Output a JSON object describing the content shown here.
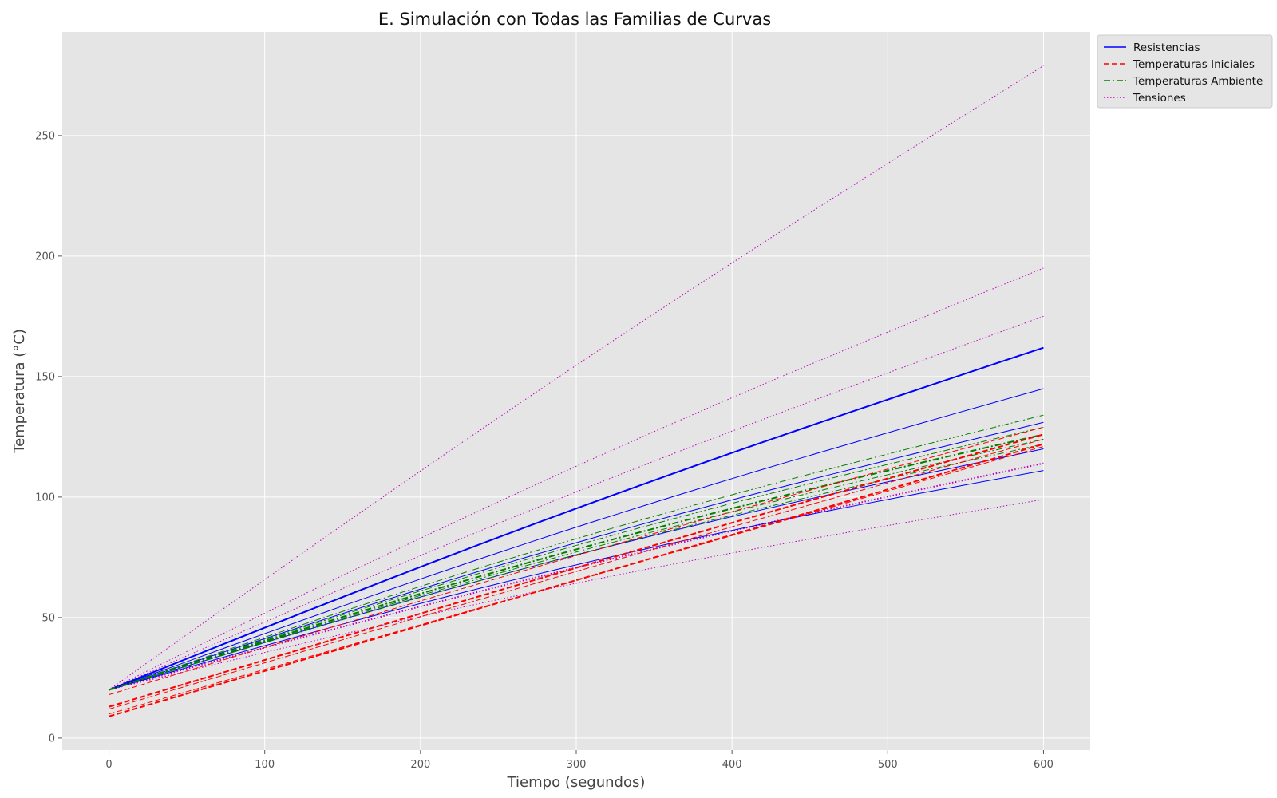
{
  "chart_data": {
    "type": "line",
    "title": "E. Simulación con Todas las Familias de Curvas",
    "xlabel": "Tiempo (segundos)",
    "ylabel": "Temperatura (°C)",
    "xlim": [
      -30,
      630
    ],
    "ylim": [
      -5,
      293
    ],
    "xticks": [
      0,
      100,
      200,
      300,
      400,
      500,
      600
    ],
    "yticks": [
      0,
      50,
      100,
      150,
      200,
      250
    ],
    "grid": true,
    "legend_position": "outside-top-right",
    "legend": [
      {
        "label": "Resistencias",
        "color": "#0000ff",
        "dash": "solid"
      },
      {
        "label": "Temperaturas Iniciales",
        "color": "#ff0000",
        "dash": "dashed"
      },
      {
        "label": "Temperaturas Ambiente",
        "color": "#008000",
        "dash": "dashdot"
      },
      {
        "label": "Tensiones",
        "color": "#bf00bf",
        "dash": "dotted"
      }
    ],
    "series": [
      {
        "family": "Tensiones",
        "color": "#bf00bf",
        "dash": "dotted",
        "width": 1,
        "x": [
          0,
          600
        ],
        "y": [
          20,
          279
        ],
        "curve": 0.02
      },
      {
        "family": "Tensiones",
        "color": "#bf00bf",
        "dash": "dotted",
        "width": 1,
        "x": [
          0,
          600
        ],
        "y": [
          20,
          195
        ],
        "curve": 0.03
      },
      {
        "family": "Tensiones",
        "color": "#bf00bf",
        "dash": "dotted",
        "width": 1,
        "x": [
          0,
          600
        ],
        "y": [
          20,
          175
        ],
        "curve": 0.03
      },
      {
        "family": "Tensiones",
        "color": "#bf00bf",
        "dash": "dotted",
        "width": 2,
        "x": [
          0,
          600
        ],
        "y": [
          20,
          114
        ],
        "curve": 0.04
      },
      {
        "family": "Tensiones",
        "color": "#bf00bf",
        "dash": "dotted",
        "width": 1,
        "x": [
          0,
          600
        ],
        "y": [
          20,
          99
        ],
        "curve": 0.06
      },
      {
        "family": "Resistencias",
        "color": "#0000ff",
        "dash": "solid",
        "width": 2,
        "x": [
          0,
          600
        ],
        "y": [
          20,
          162
        ],
        "curve": 0.03
      },
      {
        "family": "Resistencias",
        "color": "#0000ff",
        "dash": "solid",
        "width": 1,
        "x": [
          0,
          600
        ],
        "y": [
          20,
          145
        ],
        "curve": 0.04
      },
      {
        "family": "Resistencias",
        "color": "#0000ff",
        "dash": "solid",
        "width": 1,
        "x": [
          0,
          600
        ],
        "y": [
          20,
          131
        ],
        "curve": 0.05
      },
      {
        "family": "Resistencias",
        "color": "#0000ff",
        "dash": "solid",
        "width": 1,
        "x": [
          0,
          600
        ],
        "y": [
          20,
          120
        ],
        "curve": 0.06
      },
      {
        "family": "Resistencias",
        "color": "#0000ff",
        "dash": "solid",
        "width": 1,
        "x": [
          0,
          600
        ],
        "y": [
          20,
          111
        ],
        "curve": 0.07
      },
      {
        "family": "Temperaturas Ambiente",
        "color": "#008000",
        "dash": "dashdot",
        "width": 1,
        "x": [
          0,
          600
        ],
        "y": [
          20,
          134
        ],
        "curve": 0.05
      },
      {
        "family": "Temperaturas Ambiente",
        "color": "#008000",
        "dash": "dashdot",
        "width": 1,
        "x": [
          0,
          600
        ],
        "y": [
          20,
          129
        ],
        "curve": 0.05
      },
      {
        "family": "Temperaturas Ambiente",
        "color": "#008000",
        "dash": "dashdot",
        "width": 2,
        "x": [
          0,
          600
        ],
        "y": [
          20,
          126
        ],
        "curve": 0.05
      },
      {
        "family": "Temperaturas Ambiente",
        "color": "#008000",
        "dash": "dashdot",
        "width": 1,
        "x": [
          0,
          600
        ],
        "y": [
          20,
          124
        ],
        "curve": 0.05
      },
      {
        "family": "Temperaturas Ambiente",
        "color": "#008000",
        "dash": "dashdot",
        "width": 1,
        "x": [
          0,
          600
        ],
        "y": [
          20,
          122
        ],
        "curve": 0.05
      },
      {
        "family": "Temperaturas Iniciales",
        "color": "#ff0000",
        "dash": "dashed",
        "width": 1,
        "x": [
          0,
          600
        ],
        "y": [
          18,
          129
        ],
        "curve": 0.02
      },
      {
        "family": "Temperaturas Iniciales",
        "color": "#ff0000",
        "dash": "dashed",
        "width": 2,
        "x": [
          0,
          600
        ],
        "y": [
          13,
          126
        ],
        "curve": 0.01
      },
      {
        "family": "Temperaturas Iniciales",
        "color": "#ff0000",
        "dash": "dashed",
        "width": 1,
        "x": [
          0,
          600
        ],
        "y": [
          12,
          124
        ],
        "curve": 0.01
      },
      {
        "family": "Temperaturas Iniciales",
        "color": "#ff0000",
        "dash": "dashed",
        "width": 2,
        "x": [
          0,
          600
        ],
        "y": [
          9,
          122
        ],
        "curve": 0.0
      },
      {
        "family": "Temperaturas Iniciales",
        "color": "#ff0000",
        "dash": "dashed",
        "width": 1,
        "x": [
          0,
          600
        ],
        "y": [
          10,
          121
        ],
        "curve": 0.0
      }
    ]
  }
}
